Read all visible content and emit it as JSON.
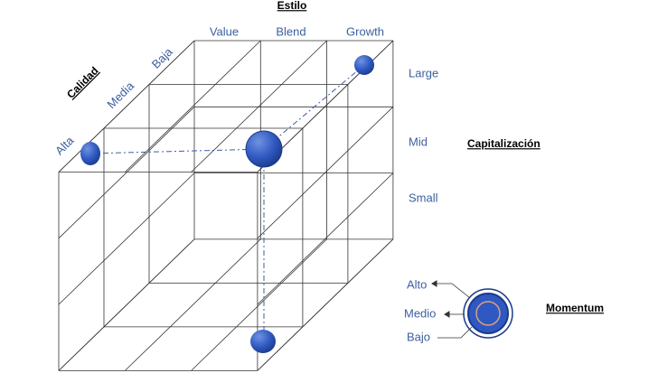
{
  "axes": {
    "style": {
      "title": "Estilo",
      "labels": [
        "Value",
        "Blend",
        "Growth"
      ]
    },
    "quality": {
      "title": "Calidad",
      "labels": [
        "Baja",
        "Media",
        "Alta"
      ]
    },
    "capitalization": {
      "title": "Capitalización",
      "labels": [
        "Large",
        "Mid",
        "Small"
      ]
    },
    "momentum": {
      "title": "Momentum",
      "labels": [
        "Alto",
        "Medio",
        "Bajo"
      ]
    }
  }
}
